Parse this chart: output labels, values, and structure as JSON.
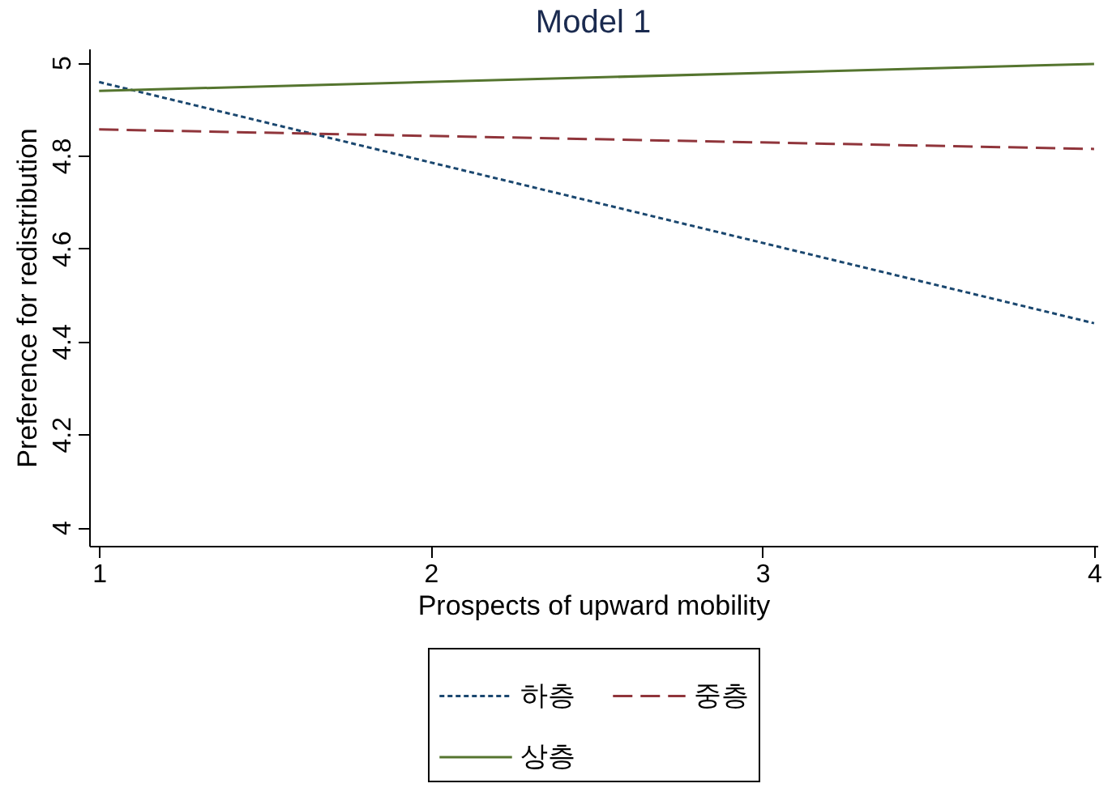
{
  "chart_data": {
    "type": "line",
    "title": "Model 1",
    "xlabel": "Prospects of upward mobility",
    "ylabel": "Preference for redistribution",
    "x": [
      1,
      4
    ],
    "series": [
      {
        "name": "하층",
        "color": "#1a476f",
        "line_style": "dotted",
        "values": [
          4.958,
          4.439
        ]
      },
      {
        "name": "중층",
        "color": "#90353b",
        "line_style": "dashed",
        "values": [
          4.856,
          4.814
        ]
      },
      {
        "name": "상층",
        "color": "#55752f",
        "line_style": "solid",
        "values": [
          4.939,
          4.997
        ]
      }
    ],
    "xlim": [
      0.97,
      4.01
    ],
    "xticks": [
      1,
      2,
      3,
      4
    ],
    "ylim": [
      3.96,
      5.03
    ],
    "yticks": [
      4,
      4.2,
      4.4,
      4.6,
      4.8,
      5
    ],
    "grid": false,
    "legend": "bottom",
    "marker": "none"
  }
}
